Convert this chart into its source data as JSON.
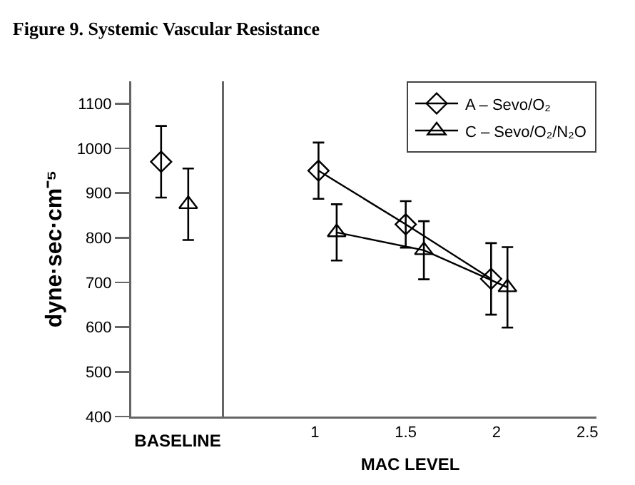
{
  "chart_data": [
    {
      "type": "scatter",
      "title": "Figure 9. Systemic Vascular Resistance",
      "xlabel": "BASELINE",
      "ylabel": "dyne·sec·cm⁻⁵",
      "categories": [
        null,
        null
      ],
      "ylim": [
        400,
        1150
      ],
      "yticks": [
        400,
        500,
        600,
        700,
        800,
        900,
        1000,
        1100
      ],
      "tick_labels": "y",
      "grid": false,
      "legend": false,
      "series": [
        {
          "color": "#000000",
          "marker": "diamond",
          "values": [
            970,
            null
          ],
          "errors": [
            80,
            null
          ]
        },
        {
          "color": "#000000",
          "marker": "triangle",
          "values": [
            null,
            875
          ],
          "errors": [
            null,
            80
          ]
        }
      ]
    },
    {
      "type": "line",
      "xlabel": "MAC LEVEL",
      "xlim": [
        0.5,
        2.55
      ],
      "xticks": [
        1,
        1.5,
        2,
        2.5
      ],
      "ylim": [
        400,
        1150
      ],
      "tick_labels": "x",
      "grid": false,
      "legend": "top right",
      "line_style": "solid",
      "series": [
        {
          "name": "A – Sevo/O₂",
          "color": "#000000",
          "marker": "diamond",
          "x": [
            1.02,
            1.5,
            1.97
          ],
          "values": [
            950,
            830,
            708
          ],
          "errors": [
            63,
            52,
            80
          ]
        },
        {
          "name": "C – Sevo/O₂/N₂O",
          "color": "#000000",
          "marker": "triangle",
          "x": [
            1.12,
            1.6,
            2.06
          ],
          "values": [
            812,
            772,
            689
          ],
          "errors": [
            63,
            65,
            90
          ]
        }
      ]
    }
  ]
}
